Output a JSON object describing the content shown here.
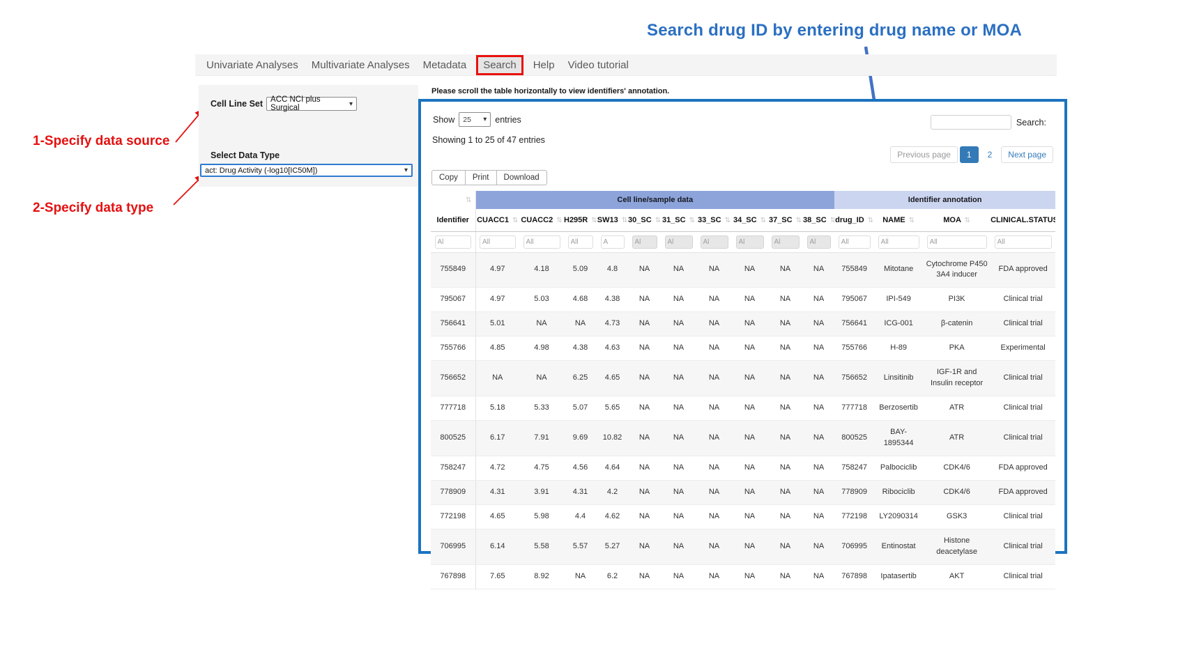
{
  "colors": {
    "hint_blue": "#2b6fc2",
    "arrow_blue": "#4472c4",
    "annotation_red": "#e51010",
    "results_border_blue": "#1b74bf",
    "group_header_dark": "#8da4db",
    "group_header_light": "#ccd5ef",
    "active_page_blue": "#337ab7"
  },
  "annotations": {
    "search_hint": "Search drug ID by entering drug  name or MOA",
    "step1": "1-Specify data source",
    "step2": "2-Specify data type"
  },
  "nav": {
    "items": [
      "Univariate Analyses",
      "Multivariate Analyses",
      "Metadata",
      "Search",
      "Help",
      "Video tutorial"
    ],
    "active": "Search"
  },
  "panel": {
    "cell_line_set_label": "Cell Line Set",
    "cell_line_set_value": "ACC NCI plus Surgical",
    "data_type_label": "Select Data Type",
    "data_type_value": "act: Drug Activity (-log10[IC50M])"
  },
  "table_area": {
    "scroll_note": "Please scroll the table horizontally to view identifiers' annotation.",
    "show_label": "Show",
    "page_length": "25",
    "entries_label": "entries",
    "info": "Showing 1 to 25 of 47 entries",
    "search_label": "Search:",
    "search_value": "",
    "toolbar_buttons": [
      "Copy",
      "Print",
      "Download"
    ],
    "pagination": {
      "prev": "Previous page",
      "pages": [
        "1",
        "2"
      ],
      "active": "1",
      "next": "Next page"
    },
    "group_headers": {
      "cell_line": "Cell line/sample data",
      "cell_line_span": 10,
      "annotation": "Identifier annotation",
      "annotation_span": 4
    },
    "columns": [
      "Identifier",
      "CUACC1",
      "CUACC2",
      "H295R",
      "SW13",
      "30_SC",
      "31_SC",
      "33_SC",
      "34_SC",
      "37_SC",
      "38_SC",
      "drug_ID",
      "NAME",
      "MOA",
      "CLINICAL.STATUS"
    ],
    "filters": [
      {
        "placeholder": "Al",
        "disabled": false
      },
      {
        "placeholder": "All",
        "disabled": false
      },
      {
        "placeholder": "All",
        "disabled": false
      },
      {
        "placeholder": "All",
        "disabled": false
      },
      {
        "placeholder": "A",
        "disabled": false
      },
      {
        "placeholder": "Al",
        "disabled": true
      },
      {
        "placeholder": "Al",
        "disabled": true
      },
      {
        "placeholder": "Al",
        "disabled": true
      },
      {
        "placeholder": "Al",
        "disabled": true
      },
      {
        "placeholder": "Al",
        "disabled": true
      },
      {
        "placeholder": "Al",
        "disabled": true
      },
      {
        "placeholder": "All",
        "disabled": false
      },
      {
        "placeholder": "All",
        "disabled": false
      },
      {
        "placeholder": "All",
        "disabled": false
      },
      {
        "placeholder": "All",
        "disabled": false
      }
    ],
    "rows": [
      [
        "755849",
        "4.97",
        "4.18",
        "5.09",
        "4.8",
        "NA",
        "NA",
        "NA",
        "NA",
        "NA",
        "NA",
        "755849",
        "Mitotane",
        "Cytochrome P450 3A4 inducer",
        "FDA approved"
      ],
      [
        "795067",
        "4.97",
        "5.03",
        "4.68",
        "4.38",
        "NA",
        "NA",
        "NA",
        "NA",
        "NA",
        "NA",
        "795067",
        "IPI-549",
        "PI3K",
        "Clinical trial"
      ],
      [
        "756641",
        "5.01",
        "NA",
        "NA",
        "4.73",
        "NA",
        "NA",
        "NA",
        "NA",
        "NA",
        "NA",
        "756641",
        "ICG-001",
        "β-catenin",
        "Clinical trial"
      ],
      [
        "755766",
        "4.85",
        "4.98",
        "4.38",
        "4.63",
        "NA",
        "NA",
        "NA",
        "NA",
        "NA",
        "NA",
        "755766",
        "H-89",
        "PKA",
        "Experimental"
      ],
      [
        "756652",
        "NA",
        "NA",
        "6.25",
        "4.65",
        "NA",
        "NA",
        "NA",
        "NA",
        "NA",
        "NA",
        "756652",
        "Linsitinib",
        "IGF-1R and Insulin receptor",
        "Clinical trial"
      ],
      [
        "777718",
        "5.18",
        "5.33",
        "5.07",
        "5.65",
        "NA",
        "NA",
        "NA",
        "NA",
        "NA",
        "NA",
        "777718",
        "Berzosertib",
        "ATR",
        "Clinical trial"
      ],
      [
        "800525",
        "6.17",
        "7.91",
        "9.69",
        "10.82",
        "NA",
        "NA",
        "NA",
        "NA",
        "NA",
        "NA",
        "800525",
        "BAY-1895344",
        "ATR",
        "Clinical trial"
      ],
      [
        "758247",
        "4.72",
        "4.75",
        "4.56",
        "4.64",
        "NA",
        "NA",
        "NA",
        "NA",
        "NA",
        "NA",
        "758247",
        "Palbociclib",
        "CDK4/6",
        "FDA approved"
      ],
      [
        "778909",
        "4.31",
        "3.91",
        "4.31",
        "4.2",
        "NA",
        "NA",
        "NA",
        "NA",
        "NA",
        "NA",
        "778909",
        "Ribociclib",
        "CDK4/6",
        "FDA approved"
      ],
      [
        "772198",
        "4.65",
        "5.98",
        "4.4",
        "4.62",
        "NA",
        "NA",
        "NA",
        "NA",
        "NA",
        "NA",
        "772198",
        "LY2090314",
        "GSK3",
        "Clinical trial"
      ],
      [
        "706995",
        "6.14",
        "5.58",
        "5.57",
        "5.27",
        "NA",
        "NA",
        "NA",
        "NA",
        "NA",
        "NA",
        "706995",
        "Entinostat",
        "Histone deacetylase",
        "Clinical trial"
      ],
      [
        "767898",
        "7.65",
        "8.92",
        "NA",
        "6.2",
        "NA",
        "NA",
        "NA",
        "NA",
        "NA",
        "NA",
        "767898",
        "Ipatasertib",
        "AKT",
        "Clinical trial"
      ]
    ]
  }
}
